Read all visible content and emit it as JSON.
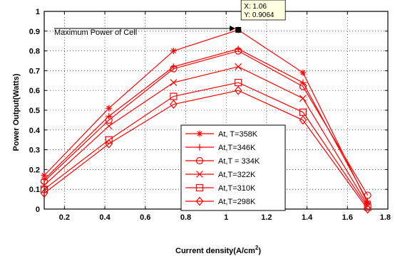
{
  "chart_data": {
    "type": "line",
    "xlabel": "Current density(A/cm",
    "xlabel_sup": "2",
    "xlabel_tail": ")",
    "ylabel": "Power Output(Watts)",
    "xlim": [
      0.1,
      1.8
    ],
    "ylim": [
      0,
      1
    ],
    "x_ticks": [
      0.2,
      0.4,
      0.6,
      0.8,
      1,
      1.2,
      1.4,
      1.6,
      1.8
    ],
    "x_tick_labels": [
      "0.2",
      "0.4",
      "0.6",
      "0.8",
      "1",
      "1.2",
      "1.4",
      "1.6",
      "1.8"
    ],
    "y_ticks": [
      0,
      0.1,
      0.2,
      0.3,
      0.4,
      0.5,
      0.6,
      0.7,
      0.8,
      0.9,
      1
    ],
    "y_tick_labels": [
      "0",
      "0.1",
      "0.2",
      "0.3",
      "0.4",
      "0.5",
      "0.6",
      "0.7",
      "0.8",
      "0.9",
      "1"
    ],
    "grid": true,
    "line_color": "#ff0000",
    "legend_position": "lower-right",
    "x": [
      0.1,
      0.42,
      0.74,
      1.06,
      1.38,
      1.7
    ],
    "series": [
      {
        "name": "At, T=358K",
        "marker": "star",
        "values": [
          0.17,
          0.51,
          0.8,
          0.9064,
          0.69,
          0.03
        ]
      },
      {
        "name": "At,T=346K",
        "marker": "plus",
        "values": [
          0.15,
          0.47,
          0.72,
          0.81,
          0.64,
          0.04
        ]
      },
      {
        "name": "At,T = 334K",
        "marker": "circle",
        "values": [
          0.14,
          0.45,
          0.71,
          0.8,
          0.62,
          0.07
        ]
      },
      {
        "name": "At,T=322K",
        "marker": "x",
        "values": [
          0.12,
          0.42,
          0.64,
          0.72,
          0.56,
          0.02
        ]
      },
      {
        "name": "At,T=310K",
        "marker": "square",
        "values": [
          0.1,
          0.35,
          0.57,
          0.64,
          0.49,
          0.01
        ]
      },
      {
        "name": "At,T=298K",
        "marker": "diamond",
        "values": [
          0.08,
          0.33,
          0.53,
          0.6,
          0.45,
          0.0
        ]
      }
    ],
    "annotation": {
      "text": "Maximum Power of Cell",
      "x": 1.06,
      "y": 0.9064
    },
    "datatip": {
      "line1": "X: 1.06",
      "line2": "Y: 0.9064",
      "x": 1.06,
      "y": 0.9064
    }
  }
}
